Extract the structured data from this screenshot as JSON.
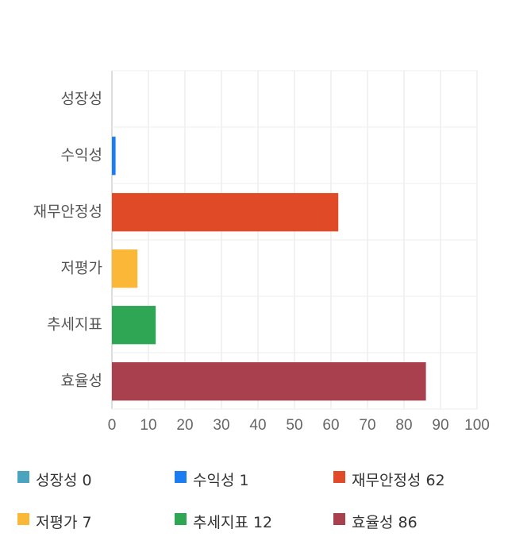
{
  "chart_data": {
    "type": "bar",
    "orientation": "horizontal",
    "categories": [
      "성장성",
      "수익성",
      "재무안정성",
      "저평가",
      "추세지표",
      "효율성"
    ],
    "values": [
      0,
      1,
      62,
      7,
      12,
      86
    ],
    "colors": [
      "#4aa3bf",
      "#1a7ef2",
      "#e04a26",
      "#fbb838",
      "#2ea654",
      "#a8404e"
    ],
    "xlim": [
      0,
      100
    ],
    "xticks": [
      "0",
      "10",
      "20",
      "30",
      "40",
      "50",
      "60",
      "70",
      "80",
      "90",
      "100"
    ],
    "grid": true,
    "legend": {
      "position": "bottom",
      "items": [
        {
          "label": "성장성 0",
          "color": "#4aa3bf"
        },
        {
          "label": "수익성 1",
          "color": "#1a7ef2"
        },
        {
          "label": "재무안정성 62",
          "color": "#e04a26"
        },
        {
          "label": "저평가 7",
          "color": "#fbb838"
        },
        {
          "label": "추세지표 12",
          "color": "#2ea654"
        },
        {
          "label": "효율성 86",
          "color": "#a8404e"
        }
      ]
    }
  }
}
